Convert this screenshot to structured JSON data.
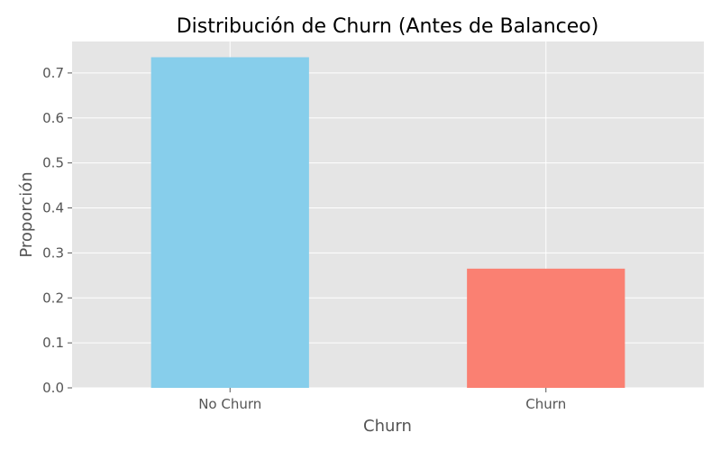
{
  "chart_data": {
    "type": "bar",
    "title": "Distribución de Churn (Antes de Balanceo)",
    "xlabel": "Churn",
    "ylabel": "Proporción",
    "categories": [
      "No Churn",
      "Churn"
    ],
    "values": [
      0.735,
      0.265
    ],
    "ylim": [
      0,
      0.77
    ],
    "yticks": [
      0.0,
      0.1,
      0.2,
      0.3,
      0.4,
      0.5,
      0.6,
      0.7
    ],
    "ytick_labels": [
      "0.0",
      "0.1",
      "0.2",
      "0.3",
      "0.4",
      "0.5",
      "0.6",
      "0.7"
    ],
    "grid": true,
    "legend": "none",
    "colors": {
      "bars": [
        "#87CEEB",
        "#FA8072"
      ],
      "plot_background": "#E5E5E5",
      "grid": "#FFFFFF"
    }
  }
}
